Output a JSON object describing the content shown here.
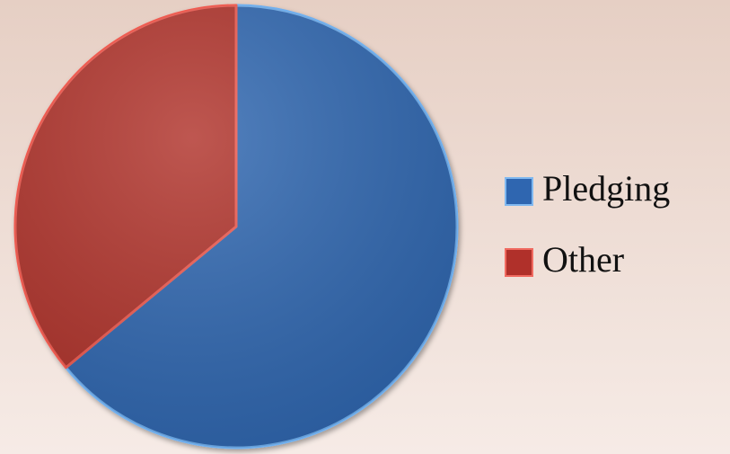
{
  "chart_data": {
    "type": "pie",
    "categories": [
      "Pledging",
      "Other"
    ],
    "values": [
      64,
      36
    ],
    "colors": [
      "#2f66b0",
      "#b0302a"
    ],
    "legend": "right"
  }
}
